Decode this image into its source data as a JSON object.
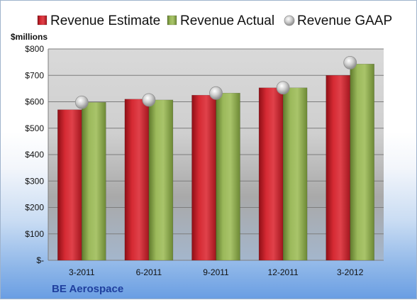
{
  "chart_data": {
    "type": "bar",
    "title": "",
    "ylabel": "$millions",
    "footer": "BE Aerospace",
    "categories": [
      "3-2011",
      "6-2011",
      "9-2011",
      "12-2011",
      "3-2012"
    ],
    "series": [
      {
        "name": "Revenue Estimate",
        "kind": "bar",
        "color": "#c8202a",
        "values": [
          570,
          610,
          625,
          653,
          700
        ]
      },
      {
        "name": "Revenue Actual",
        "kind": "bar",
        "color": "#8fad4e",
        "values": [
          598,
          607,
          633,
          653,
          743
        ]
      },
      {
        "name": "Revenue GAAP",
        "kind": "marker",
        "color": "#b8b8b8",
        "values": [
          598,
          607,
          633,
          653,
          748
        ]
      }
    ],
    "ylim": [
      0,
      800
    ],
    "yticks": [
      0,
      100,
      200,
      300,
      400,
      500,
      600,
      700,
      800
    ],
    "ytick_labels": [
      "$-",
      "$100",
      "$200",
      "$300",
      "$400",
      "$500",
      "$600",
      "$700",
      "$800"
    ],
    "grid": true,
    "legend_position": "top"
  }
}
